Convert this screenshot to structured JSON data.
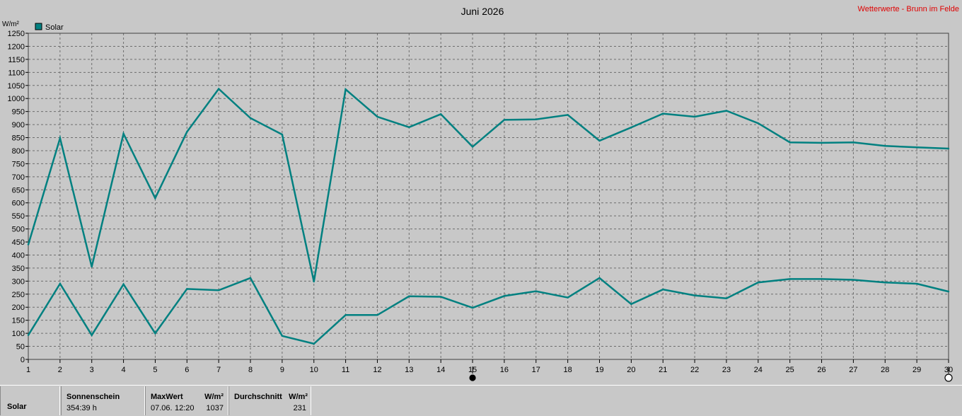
{
  "chart_data": {
    "type": "line",
    "title": "Juni 2026",
    "source_label": "Wetterwerte - Brunn im Felde",
    "ylabel": "W/m²",
    "ylim": [
      0,
      1250
    ],
    "ytick_step": 50,
    "yticks": [
      "0",
      "50",
      "100",
      "150",
      "200",
      "250",
      "300",
      "350",
      "400",
      "450",
      "500",
      "550",
      "600",
      "650",
      "700",
      "750",
      "800",
      "850",
      "900",
      "950",
      "1000",
      "1050",
      "1100",
      "1150",
      "1200",
      "1250"
    ],
    "x": [
      1,
      2,
      3,
      4,
      5,
      6,
      7,
      8,
      9,
      10,
      11,
      12,
      13,
      14,
      15,
      16,
      17,
      18,
      19,
      20,
      21,
      22,
      23,
      24,
      25,
      26,
      27,
      28,
      29,
      30
    ],
    "xticks": [
      "1",
      "2",
      "3",
      "4",
      "5",
      "6",
      "7",
      "8",
      "9",
      "10",
      "11",
      "12",
      "13",
      "14",
      "15",
      "16",
      "17",
      "18",
      "19",
      "20",
      "21",
      "22",
      "23",
      "24",
      "25",
      "26",
      "27",
      "28",
      "29",
      "30"
    ],
    "grid": true,
    "legend": {
      "position": "top-left",
      "entries": [
        "Solar"
      ]
    },
    "series": [
      {
        "name": "Solar",
        "role": "max",
        "color": "#008080",
        "values": [
          440,
          848,
          355,
          865,
          618,
          872,
          1037,
          925,
          862,
          298,
          1035,
          930,
          890,
          940,
          815,
          918,
          920,
          937,
          838,
          889,
          942,
          930,
          953,
          905,
          832,
          830,
          832,
          818,
          813,
          808
        ]
      },
      {
        "name": "Solar",
        "role": "avg",
        "color": "#008080",
        "values": [
          93,
          290,
          93,
          288,
          100,
          270,
          265,
          312,
          90,
          60,
          170,
          170,
          242,
          240,
          198,
          243,
          261,
          237,
          312,
          212,
          268,
          245,
          234,
          295,
          308,
          308,
          305,
          295,
          290,
          260
        ]
      }
    ],
    "markers": [
      {
        "x": 15,
        "symbol": "new-moon"
      },
      {
        "x": 30,
        "symbol": "full-moon"
      }
    ]
  },
  "footer": {
    "row_label": "Solar",
    "sunshine": {
      "header": "Sonnenschein",
      "value": "354:39 h"
    },
    "max": {
      "header": "MaxWert",
      "unit": "W/m²",
      "date": "07.06.",
      "time": "12:20",
      "value": "1037"
    },
    "avg": {
      "header": "Durchschnitt",
      "unit": "W/m²",
      "value": "231"
    }
  }
}
